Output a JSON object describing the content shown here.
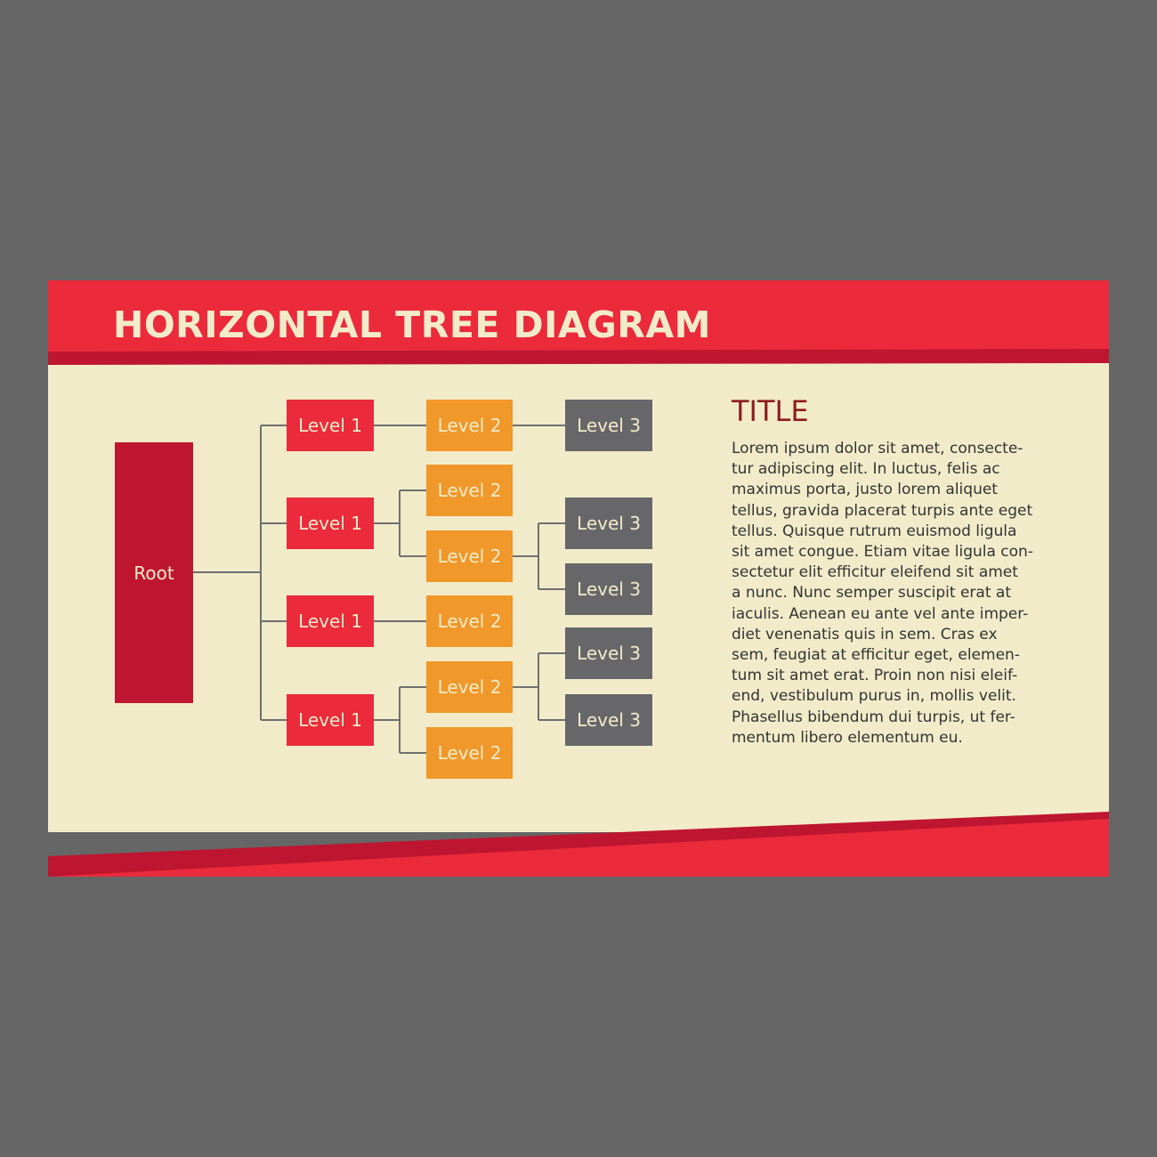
{
  "slide": {
    "title": "HORIZONTAL TREE DIAGRAM"
  },
  "colors": {
    "background": "#666666",
    "panel": "#f2ebc9",
    "header_red": "#eb2a3b",
    "header_dark_red": "#be1630",
    "root": "#be1630",
    "level1": "#eb2a3b",
    "level2": "#f0982a",
    "level3": "#67676a",
    "connector": "#6f6f6f",
    "node_text": "#f2ebc9",
    "side_title": "#8d1b1f",
    "body_text": "#333333"
  },
  "tree": {
    "root": "Root",
    "level1": [
      "Level 1",
      "Level 1",
      "Level 1",
      "Level 1"
    ],
    "level2": [
      "Level 2",
      "Level 2",
      "Level 2",
      "Level 2",
      "Level 2",
      "Level 2"
    ],
    "level3": [
      "Level 3",
      "Level 3",
      "Level 3",
      "Level 3",
      "Level 3"
    ]
  },
  "side": {
    "title": "TITLE",
    "lines": [
      "Lorem ipsum dolor sit amet, consecte-",
      "tur adipiscing elit. In luctus, felis ac",
      "maximus porta, justo lorem aliquet",
      "tellus, gravida placerat turpis ante eget",
      "tellus. Quisque rutrum euismod ligula",
      "sit amet congue. Etiam vitae ligula con-",
      "sectetur elit efficitur eleifend sit amet",
      "a nunc. Nunc semper suscipit erat at",
      "iaculis. Aenean eu ante vel ante imper-",
      "diet venenatis quis in sem. Cras ex",
      "sem, feugiat at efficitur eget, elemen-",
      "tum sit amet erat. Proin non nisi eleif-",
      "end, vestibulum purus in, mollis velit.",
      "Phasellus bibendum dui turpis, ut fer-",
      "mentum libero elementum eu."
    ]
  }
}
